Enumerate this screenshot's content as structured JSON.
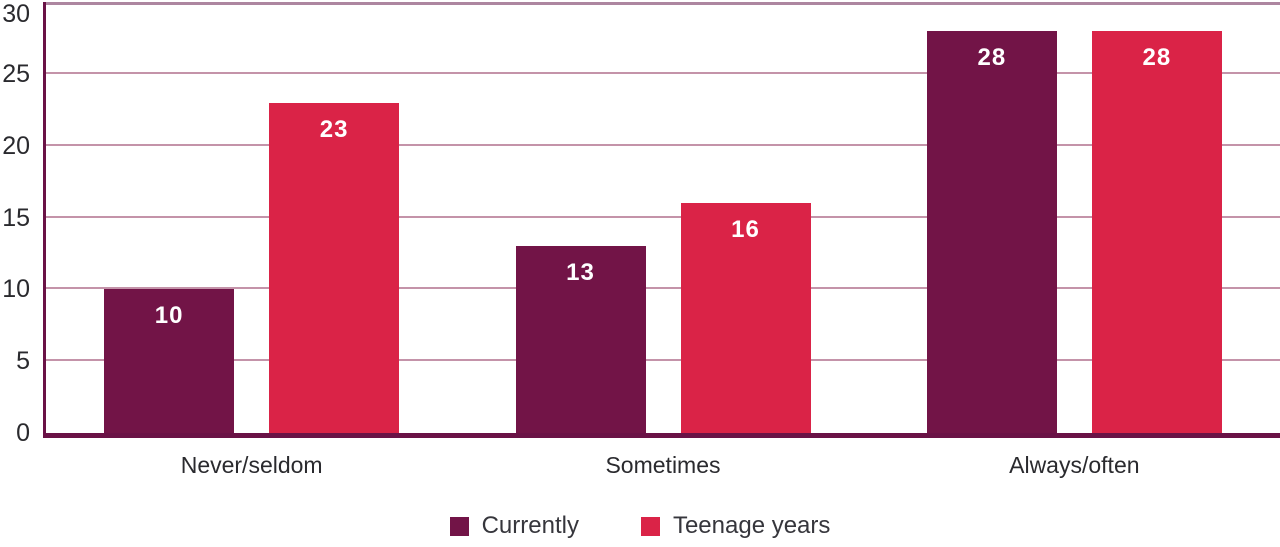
{
  "chart_data": {
    "type": "bar",
    "title": "",
    "xlabel": "",
    "ylabel": "",
    "categories": [
      "Never/seldom",
      "Sometimes",
      "Always/often"
    ],
    "series": [
      {
        "name": "Currently",
        "color": "#721447",
        "values": [
          10,
          13,
          28
        ]
      },
      {
        "name": "Teenage years",
        "color": "#da2347",
        "values": [
          23,
          16,
          28
        ]
      }
    ],
    "ylim": [
      0,
      30
    ],
    "yticks": [
      0,
      5,
      10,
      15,
      20,
      25,
      30
    ],
    "grid": true,
    "bar_value_labels": true,
    "legend_position": "bottom"
  },
  "colors": {
    "background": "#ffffff",
    "axis": "#6a1246",
    "top_border": "#ad86a0",
    "gridline": "#c493a9",
    "tick_text": "#2a2a2e",
    "legend_text": "#36363c",
    "bar_label_text": "#ffffff",
    "series_currently": "#721447",
    "series_teenage_years": "#da2347"
  }
}
